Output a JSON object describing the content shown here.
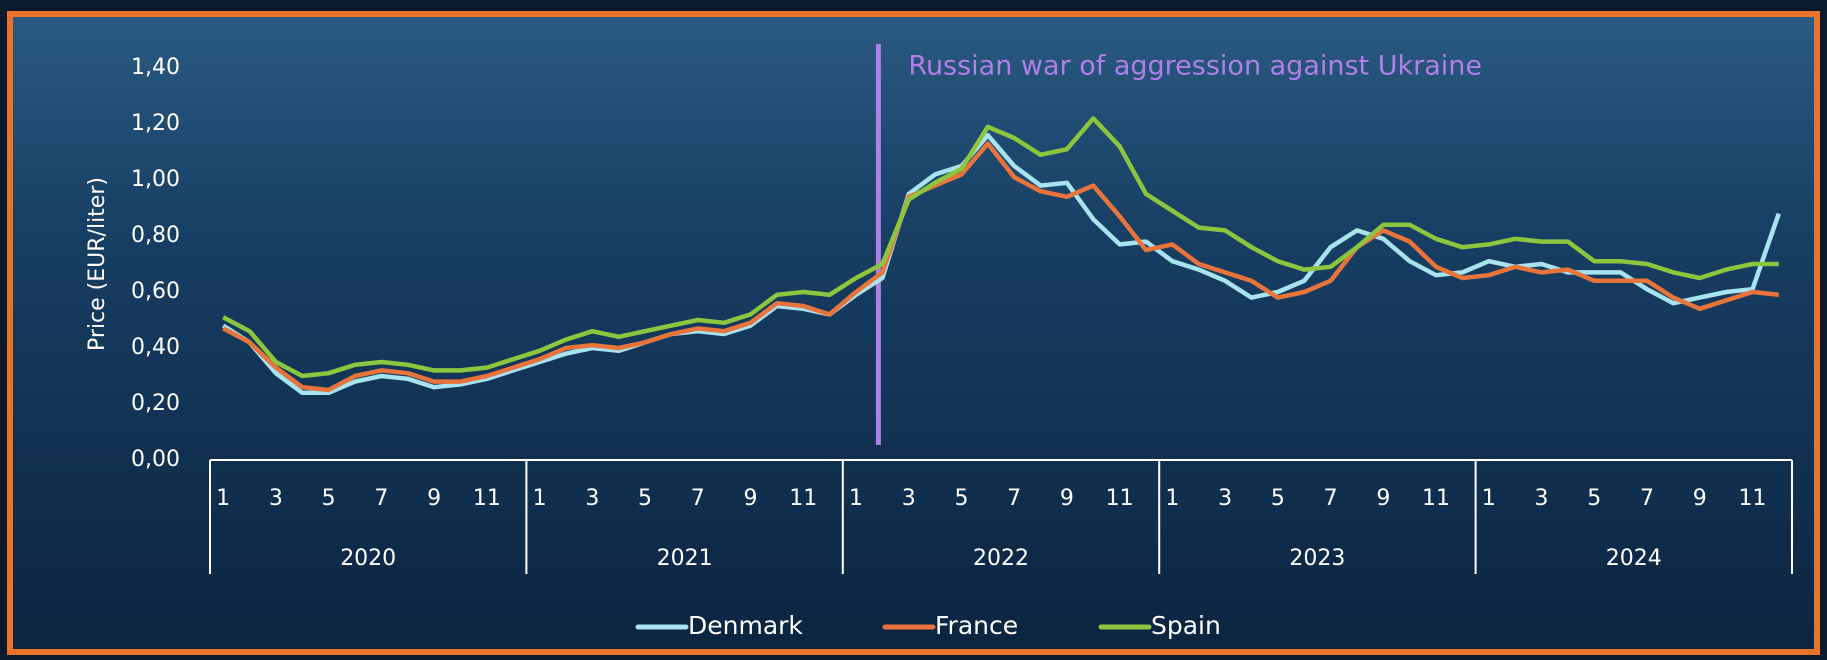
{
  "chart_data": {
    "type": "line",
    "y_label": "Price (EUR/liter)",
    "annotation": {
      "text": "Russian war of aggression against Ukraine",
      "at": 25,
      "color": "#b07fe8"
    },
    "categories": [
      "1",
      null,
      "3",
      null,
      "5",
      null,
      "7",
      null,
      "9",
      null,
      "11",
      null,
      "1",
      null,
      "3",
      null,
      "5",
      null,
      "7",
      null,
      "9",
      null,
      "11",
      null,
      "1",
      null,
      "3",
      null,
      "5",
      null,
      "7",
      null,
      "9",
      null,
      "11",
      null,
      "1",
      null,
      "3",
      null,
      "5",
      null,
      "7",
      null,
      "9",
      null,
      "11",
      null,
      "1",
      null,
      "3",
      null,
      "5",
      null,
      "7",
      null,
      "9",
      null,
      "11",
      null
    ],
    "x_groups": [
      "2020",
      "2021",
      "2022",
      "2023",
      "2024"
    ],
    "ylim": [
      0,
      1.4
    ],
    "yticks": [
      {
        "value": 0,
        "label": "0,00"
      },
      {
        "value": 0.2,
        "label": "0,20"
      },
      {
        "value": 0.4,
        "label": "0,40"
      },
      {
        "value": 0.6,
        "label": "0,60"
      },
      {
        "value": 0.8,
        "label": "0,80"
      },
      {
        "value": 1.0,
        "label": "1,00"
      },
      {
        "value": 1.2,
        "label": "1,20"
      },
      {
        "value": 1.4,
        "label": "1,40"
      }
    ],
    "grid": false,
    "legend": "bottom",
    "series": [
      {
        "name": "Denmark",
        "color": "#a8e4f0",
        "values": [
          0.48,
          0.42,
          0.31,
          0.24,
          0.24,
          0.28,
          0.3,
          0.29,
          0.26,
          0.27,
          0.29,
          0.32,
          0.35,
          0.38,
          0.4,
          0.39,
          0.42,
          0.45,
          0.46,
          0.45,
          0.48,
          0.55,
          0.54,
          0.52,
          0.59,
          0.65,
          0.95,
          1.02,
          1.05,
          1.16,
          1.05,
          0.98,
          0.99,
          0.86,
          0.77,
          0.78,
          0.71,
          0.68,
          0.64,
          0.58,
          0.6,
          0.64,
          0.76,
          0.82,
          0.79,
          0.71,
          0.66,
          0.67,
          0.71,
          0.69,
          0.7,
          0.67,
          0.67,
          0.67,
          0.61,
          0.56,
          0.58,
          0.6,
          0.61,
          0.88
        ]
      },
      {
        "name": "France",
        "color": "#e8743b",
        "values": [
          0.47,
          0.42,
          0.33,
          0.26,
          0.25,
          0.3,
          0.32,
          0.31,
          0.28,
          0.28,
          0.3,
          0.33,
          0.36,
          0.4,
          0.41,
          0.4,
          0.42,
          0.45,
          0.47,
          0.46,
          0.49,
          0.56,
          0.55,
          0.52,
          0.6,
          0.67,
          0.94,
          0.98,
          1.02,
          1.13,
          1.01,
          0.96,
          0.94,
          0.98,
          0.87,
          0.75,
          0.77,
          0.7,
          0.67,
          0.64,
          0.58,
          0.6,
          0.64,
          0.76,
          0.82,
          0.78,
          0.69,
          0.65,
          0.66,
          0.69,
          0.67,
          0.68,
          0.64,
          0.64,
          0.64,
          0.58,
          0.54,
          0.57,
          0.6,
          0.59
        ]
      },
      {
        "name": "Spain",
        "color": "#8cc63f",
        "values": [
          0.51,
          0.46,
          0.35,
          0.3,
          0.31,
          0.34,
          0.35,
          0.34,
          0.32,
          0.32,
          0.33,
          0.36,
          0.39,
          0.43,
          0.46,
          0.44,
          0.46,
          0.48,
          0.5,
          0.49,
          0.52,
          0.59,
          0.6,
          0.59,
          0.65,
          0.7,
          0.93,
          0.99,
          1.04,
          1.19,
          1.15,
          1.09,
          1.11,
          1.22,
          1.12,
          0.95,
          0.89,
          0.83,
          0.82,
          0.76,
          0.71,
          0.68,
          0.69,
          0.76,
          0.84,
          0.84,
          0.79,
          0.76,
          0.77,
          0.79,
          0.78,
          0.78,
          0.71,
          0.71,
          0.7,
          0.67,
          0.65,
          0.68,
          0.7,
          0.7
        ]
      }
    ]
  }
}
